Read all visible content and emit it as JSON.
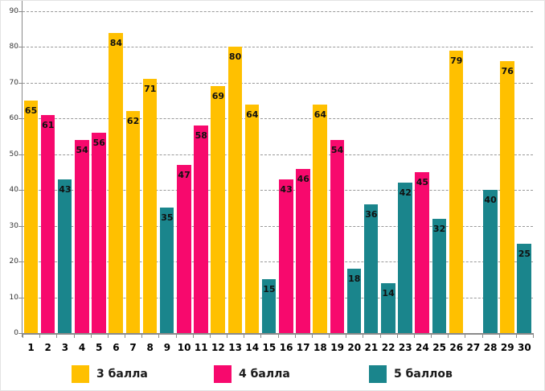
{
  "chart_data": {
    "type": "bar",
    "title": "",
    "xlabel": "",
    "ylabel": "",
    "ylim": [
      0,
      90
    ],
    "yticks": [
      0,
      10,
      20,
      30,
      40,
      50,
      60,
      70,
      80,
      90
    ],
    "grid": "horizontal-dashed",
    "legend_position": "bottom",
    "categories": [
      "1",
      "2",
      "3",
      "4",
      "5",
      "6",
      "7",
      "8",
      "9",
      "10",
      "11",
      "12",
      "13",
      "14",
      "15",
      "16",
      "17",
      "18",
      "19",
      "20",
      "21",
      "22",
      "23",
      "24",
      "25",
      "26",
      "27",
      "28",
      "29",
      "30"
    ],
    "series": [
      {
        "name": "3 балла",
        "color": "#FFC000"
      },
      {
        "name": "4 балла",
        "color": "#F7096D"
      },
      {
        "name": "5 баллов",
        "color": "#1A858C"
      }
    ],
    "points": [
      {
        "category": "1",
        "series": "3 балла",
        "value": 65
      },
      {
        "category": "2",
        "series": "4 балла",
        "value": 61
      },
      {
        "category": "3",
        "series": "5 баллов",
        "value": 43
      },
      {
        "category": "4",
        "series": "4 балла",
        "value": 54
      },
      {
        "category": "5",
        "series": "4 балла",
        "value": 56
      },
      {
        "category": "6",
        "series": "3 балла",
        "value": 84
      },
      {
        "category": "7",
        "series": "3 балла",
        "value": 62
      },
      {
        "category": "8",
        "series": "3 балла",
        "value": 71
      },
      {
        "category": "9",
        "series": "5 баллов",
        "value": 35
      },
      {
        "category": "10",
        "series": "4 балла",
        "value": 47
      },
      {
        "category": "11",
        "series": "4 балла",
        "value": 58
      },
      {
        "category": "12",
        "series": "3 балла",
        "value": 69
      },
      {
        "category": "13",
        "series": "3 балла",
        "value": 80
      },
      {
        "category": "14",
        "series": "3 балла",
        "value": 64
      },
      {
        "category": "15",
        "series": "5 баллов",
        "value": 15
      },
      {
        "category": "16",
        "series": "4 балла",
        "value": 43
      },
      {
        "category": "17",
        "series": "4 балла",
        "value": 46
      },
      {
        "category": "18",
        "series": "3 балла",
        "value": 64
      },
      {
        "category": "19",
        "series": "4 балла",
        "value": 54
      },
      {
        "category": "20",
        "series": "5 баллов",
        "value": 18
      },
      {
        "category": "21",
        "series": "5 баллов",
        "value": 36
      },
      {
        "category": "22",
        "series": "5 баллов",
        "value": 14
      },
      {
        "category": "23",
        "series": "5 баллов",
        "value": 42
      },
      {
        "category": "24",
        "series": "4 балла",
        "value": 45
      },
      {
        "category": "25",
        "series": "5 баллов",
        "value": 32
      },
      {
        "category": "26",
        "series": "3 балла",
        "value": 79
      },
      {
        "category": "27",
        "series": null,
        "value": null
      },
      {
        "category": "28",
        "series": "5 баллов",
        "value": 40
      },
      {
        "category": "29",
        "series": "3 балла",
        "value": 76
      },
      {
        "category": "30",
        "series": "5 баллов",
        "value": 25
      }
    ]
  },
  "legend": {
    "items": [
      {
        "label": "3 балла",
        "color": "#FFC000"
      },
      {
        "label": "4 балла",
        "color": "#F7096D"
      },
      {
        "label": "5 баллов",
        "color": "#1A858C"
      }
    ]
  },
  "style_colors": {
    "grid": "#999999",
    "axis": "#8A8A8A",
    "bar_label_text": "#111111"
  }
}
